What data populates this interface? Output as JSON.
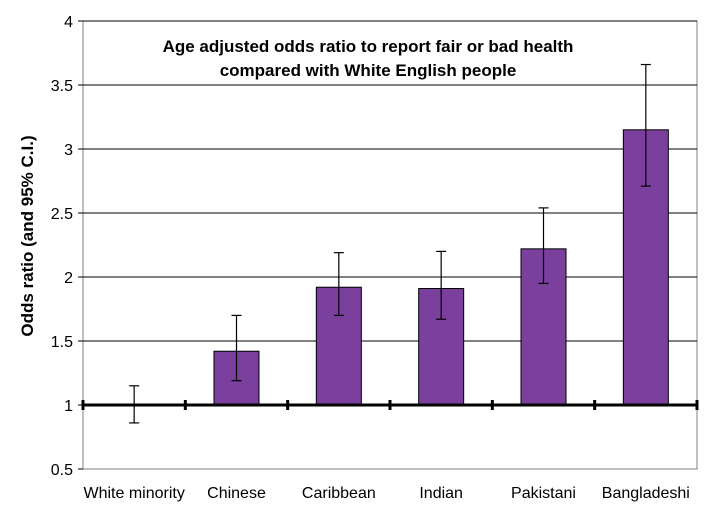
{
  "chart_data": {
    "type": "bar",
    "title": "Age adjusted odds ratio to report fair or bad health",
    "subtitle": "compared with White English people",
    "ylabel": "Odds ratio (and 95% C.I.)",
    "xlabel": "",
    "ylim": [
      0.5,
      4
    ],
    "yticks": [
      "0.5",
      "1",
      "1.5",
      "2",
      "2.5",
      "3",
      "3.5",
      "4"
    ],
    "baseline": 1,
    "grid": true,
    "legend": "none",
    "categories": [
      "White minority",
      "Chinese",
      "Caribbean",
      "Indian",
      "Pakistani",
      "Bangladeshi"
    ],
    "series": [
      {
        "values": [
          1.0,
          1.42,
          1.92,
          1.91,
          2.22,
          3.15
        ],
        "ci_lower": [
          0.86,
          1.19,
          1.7,
          1.67,
          1.95,
          2.71
        ],
        "ci_upper": [
          1.15,
          1.7,
          2.19,
          2.2,
          2.54,
          3.66
        ],
        "color": "#7b3f9e"
      }
    ],
    "colors": {
      "bar_fill": "#7b3f9e",
      "bar_stroke": "#000000",
      "grid": "#000000",
      "background": "#ffffff"
    }
  }
}
